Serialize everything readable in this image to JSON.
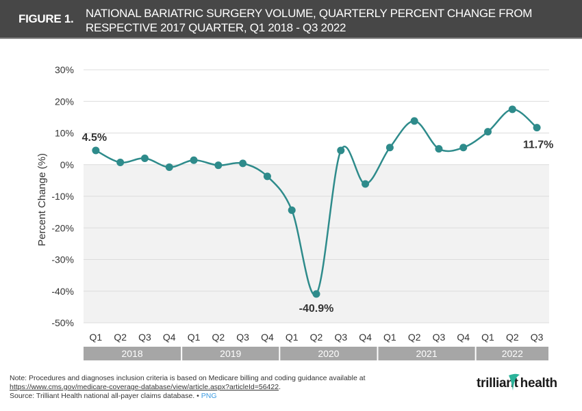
{
  "header": {
    "figure_label": "FIGURE 1.",
    "title_line1": "NATIONAL BARIATRIC SURGERY VOLUME, QUARTERLY PERCENT CHANGE FROM",
    "title_line2": "RESPECTIVE 2017 QUARTER, Q1 2018 - Q3 2022"
  },
  "chart_data": {
    "type": "line",
    "title": "National Bariatric Surgery Volume, Quarterly Percent Change from Respective 2017 Quarter, Q1 2018 - Q3 2022",
    "xlabel": "",
    "ylabel": "Percent Change (%)",
    "ylim": [
      -50,
      30
    ],
    "yticks": [
      30,
      20,
      10,
      0,
      -10,
      -20,
      -30,
      -40,
      -50
    ],
    "ytick_labels": [
      "30%",
      "20%",
      "10%",
      "0%",
      "-10%",
      "-20%",
      "-30%",
      "-40%",
      "-50%"
    ],
    "grid": true,
    "negative_region_shaded": true,
    "x": [
      "Q1",
      "Q2",
      "Q3",
      "Q4",
      "Q1",
      "Q2",
      "Q3",
      "Q4",
      "Q1",
      "Q2",
      "Q3",
      "Q4",
      "Q1",
      "Q2",
      "Q3",
      "Q4",
      "Q1",
      "Q2",
      "Q3"
    ],
    "year_groups": [
      {
        "label": "2018",
        "count": 4
      },
      {
        "label": "2019",
        "count": 4
      },
      {
        "label": "2020",
        "count": 4
      },
      {
        "label": "2021",
        "count": 4
      },
      {
        "label": "2022",
        "count": 3
      }
    ],
    "series": [
      {
        "name": "Percent Change",
        "color": "#2e8b8b",
        "values": [
          4.5,
          0.7,
          2.0,
          -0.8,
          1.4,
          -0.2,
          0.4,
          -3.7,
          -14.4,
          -40.9,
          4.5,
          -6.1,
          5.4,
          13.8,
          5.0,
          5.4,
          10.4,
          17.5,
          11.7
        ]
      }
    ],
    "annotations": [
      {
        "index": 0,
        "text": "4.5%",
        "position": "above"
      },
      {
        "index": 9,
        "text": "-40.9%",
        "position": "below"
      },
      {
        "index": 18,
        "text": "11.7%",
        "position": "below"
      }
    ]
  },
  "footer": {
    "note": "Note: Procedures and diagnoses inclusion criteria is based on Medicare billing and coding guidance available at",
    "link": "https://www.cms.gov/medicare-coverage-database/view/article.aspx?articleId=56422",
    "link_suffix": ".",
    "source": "Source: Trilliant Health national all-payer claims database.",
    "separator": " • ",
    "png_label": "PNG",
    "logo_text": "trilliant health"
  },
  "colors": {
    "header_bg": "#474747",
    "line": "#2e8b8b",
    "year_band": "#a6a6a6",
    "negative_shade": "#f2f2f2",
    "logo_accent": "#2bb39a"
  }
}
